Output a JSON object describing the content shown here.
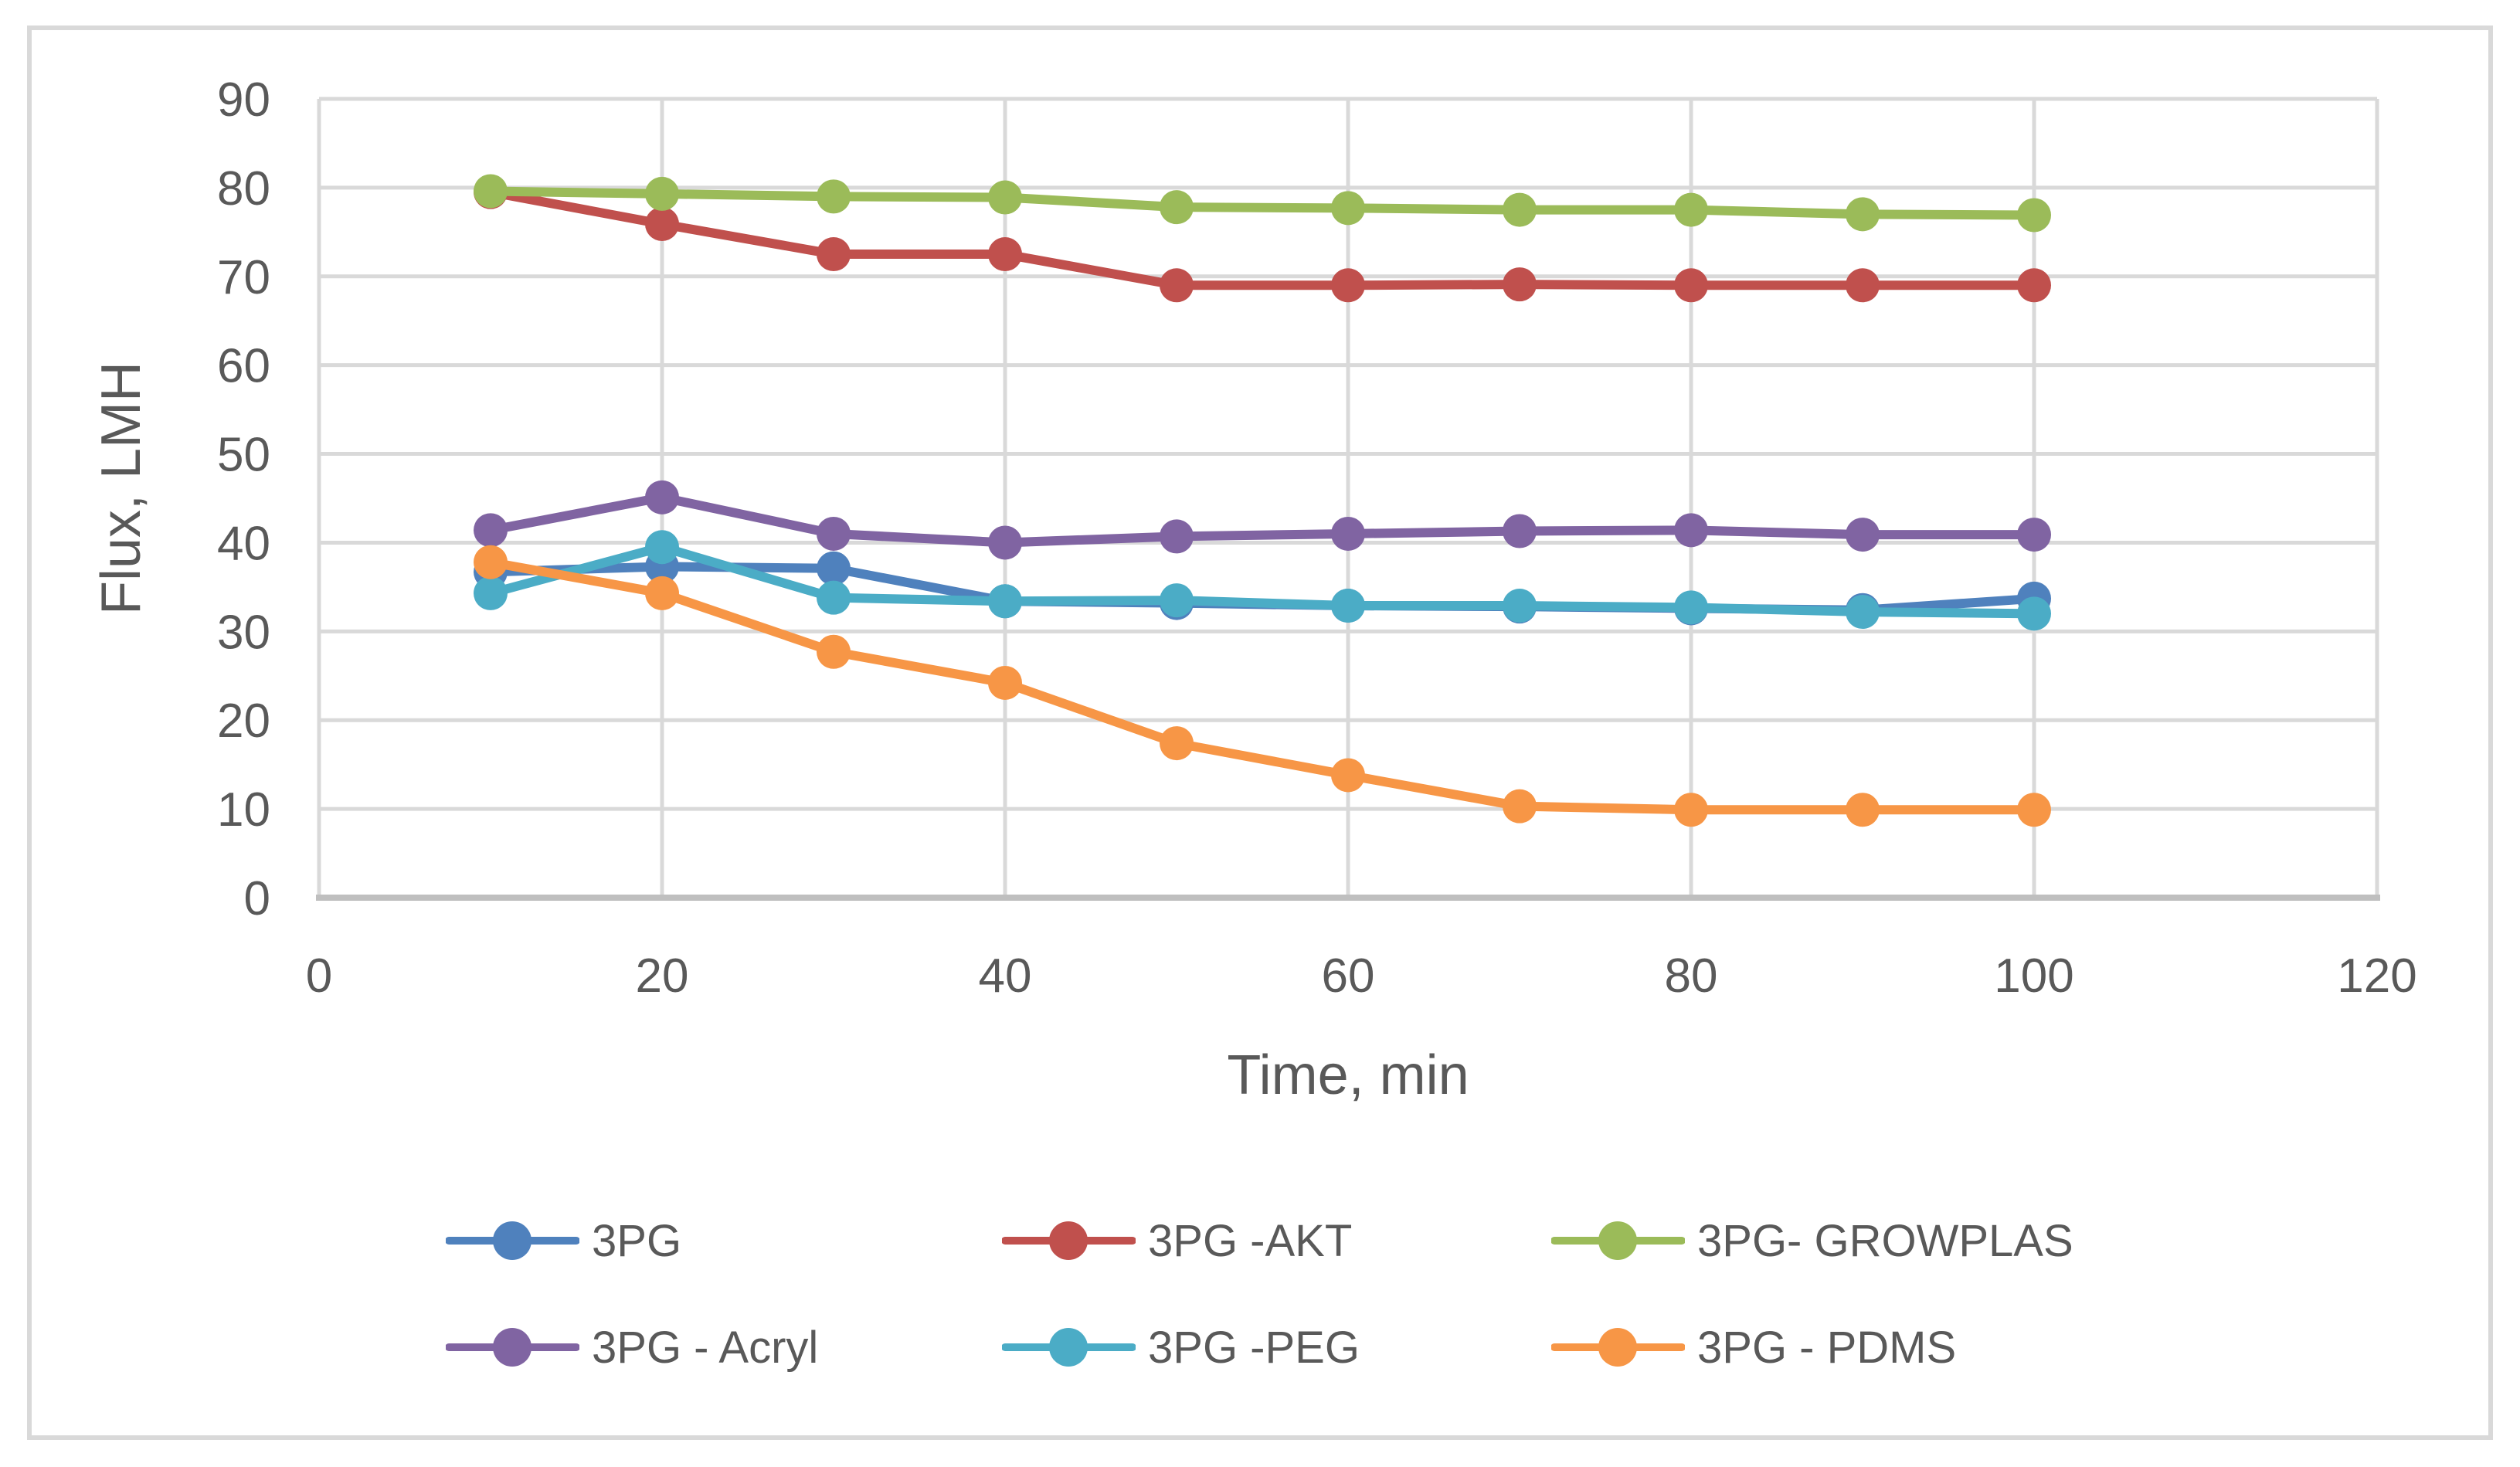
{
  "chart_data": {
    "type": "line",
    "title": "",
    "xlabel": "Time, min",
    "ylabel": "Flux, LMH",
    "x": [
      10,
      20,
      30,
      40,
      50,
      60,
      70,
      80,
      90,
      100
    ],
    "xlim": [
      0,
      120
    ],
    "ylim": [
      0,
      90
    ],
    "x_ticks": [
      0,
      20,
      40,
      60,
      80,
      100,
      120
    ],
    "y_ticks": [
      0,
      10,
      20,
      30,
      40,
      50,
      60,
      70,
      80,
      90
    ],
    "grid": true,
    "legend_position": "bottom",
    "marker": "circle",
    "series": [
      {
        "name": "3PG",
        "color": "#4F81BD",
        "values": [
          36.7,
          37.3,
          37.1,
          33.4,
          33.2,
          32.9,
          32.8,
          32.6,
          32.4,
          33.7
        ]
      },
      {
        "name": "3PG -AKT",
        "color": "#C0504D",
        "values": [
          79.5,
          75.9,
          72.5,
          72.5,
          69.0,
          69.0,
          69.1,
          69.0,
          69.0,
          69.0
        ]
      },
      {
        "name": "3PG- GROWPLAS",
        "color": "#9BBB59",
        "values": [
          79.6,
          79.3,
          79.0,
          78.9,
          77.8,
          77.7,
          77.5,
          77.5,
          77.0,
          76.9
        ]
      },
      {
        "name": "3PG - Acryl",
        "color": "#8064A2",
        "values": [
          41.4,
          45.1,
          41.0,
          40.0,
          40.7,
          41.0,
          41.3,
          41.4,
          40.9,
          40.9
        ]
      },
      {
        "name": "3PG -PEG",
        "color": "#4BACC6",
        "values": [
          34.3,
          39.5,
          33.8,
          33.4,
          33.5,
          32.9,
          32.9,
          32.7,
          32.2,
          32.0
        ]
      },
      {
        "name": "3PG - PDMS",
        "color": "#F79646",
        "values": [
          37.8,
          34.3,
          27.7,
          24.2,
          17.4,
          13.8,
          10.3,
          9.9,
          9.9,
          9.9
        ]
      }
    ]
  },
  "theme": {
    "background": "#FFFFFF",
    "text_color": "#595959",
    "gridline_color": "#D9D9D9",
    "axis_line_color": "#BFBFBF",
    "frame_border_color": "#D9D9D9"
  }
}
